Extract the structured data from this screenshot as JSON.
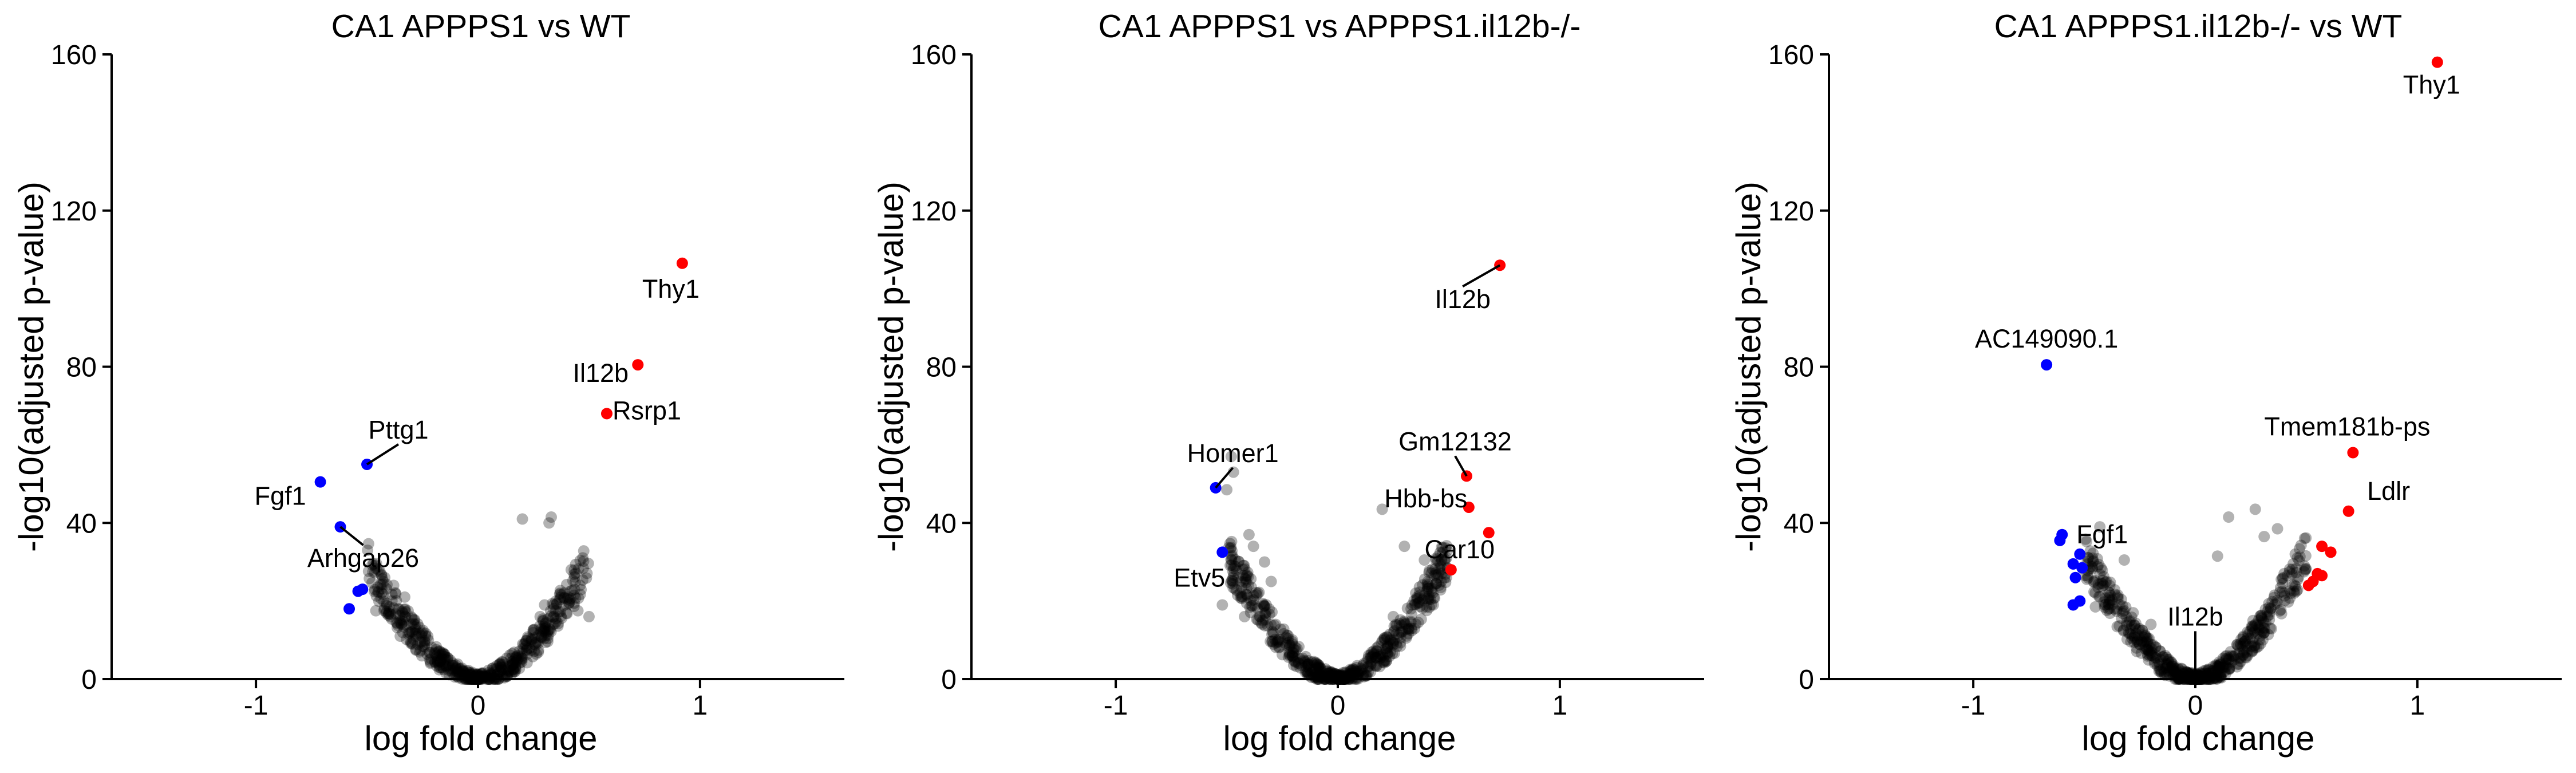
{
  "colors": {
    "background": "#ffffff",
    "neutral_point": "#000000",
    "up": "#ff0000",
    "down": "#0000ff",
    "axis": "#000000"
  },
  "chart_data": [
    {
      "type": "scatter",
      "title": "CA1 APPPS1 vs WT",
      "xlabel": "log fold change",
      "ylabel": "-log10(adjusted p-value)",
      "xlim": [
        -1.65,
        1.65
      ],
      "ylim": [
        0,
        160
      ],
      "xticks": [
        -1,
        0,
        1
      ],
      "yticks": [
        0,
        40,
        80,
        120,
        160
      ],
      "xtick_labels": [
        "-1",
        "0",
        "1"
      ],
      "ytick_labels": [
        "0",
        "40",
        "80",
        "120",
        "160"
      ],
      "grid": false,
      "highlighted": [
        {
          "gene": "Thy1",
          "x": 0.92,
          "y": 106.5,
          "dir": "up",
          "label": "Thy1"
        },
        {
          "gene": "Il12b",
          "x": 0.72,
          "y": 80.5,
          "dir": "up",
          "label": "Il12b"
        },
        {
          "gene": "Rsrp1",
          "x": 0.58,
          "y": 68,
          "dir": "up",
          "label": "Rsrp1"
        },
        {
          "gene": "Pttg1",
          "x": -0.5,
          "y": 55,
          "dir": "down",
          "label": "Pttg1"
        },
        {
          "gene": "Fgf1",
          "x": -0.71,
          "y": 50.5,
          "dir": "down",
          "label": "Fgf1"
        },
        {
          "gene": "Arhgap26",
          "x": -0.62,
          "y": 39,
          "dir": "down",
          "label": "Arhgap26"
        },
        {
          "gene": "",
          "x": -0.52,
          "y": 23,
          "dir": "down",
          "label": ""
        },
        {
          "gene": "",
          "x": -0.54,
          "y": 22.5,
          "dir": "down",
          "label": ""
        },
        {
          "gene": "",
          "x": -0.58,
          "y": 18,
          "dir": "down",
          "label": ""
        }
      ],
      "background_points": [
        [
          0.2,
          41
        ],
        [
          0.33,
          41.5
        ],
        [
          0.32,
          40
        ],
        [
          0.42,
          28
        ],
        [
          0.37,
          22
        ],
        [
          0.3,
          19
        ],
        [
          0.45,
          17.5
        ],
        [
          0.35,
          15.5
        ],
        [
          0.5,
          16
        ],
        [
          -0.45,
          28
        ],
        [
          -0.38,
          24
        ],
        [
          -0.33,
          21
        ],
        [
          -0.4,
          18.5
        ],
        [
          -0.46,
          17.5
        ],
        [
          -0.3,
          14
        ],
        [
          -0.25,
          12
        ],
        [
          -0.35,
          11
        ],
        [
          -0.42,
          26
        ],
        [
          -0.36,
          18
        ],
        [
          0.41,
          19.5
        ],
        [
          0.28,
          16
        ],
        [
          0.46,
          24
        ]
      ],
      "cloud": {
        "span": [
          -0.5,
          0.5
        ],
        "peak": 30,
        "n": 520
      }
    },
    {
      "type": "scatter",
      "title": "CA1 APPPS1 vs APPPS1.il12b-/-",
      "xlabel": "log fold change",
      "ylabel": "-log10(adjusted p-value)",
      "xlim": [
        -1.65,
        1.65
      ],
      "ylim": [
        0,
        160
      ],
      "xticks": [
        -1,
        0,
        1
      ],
      "yticks": [
        0,
        40,
        80,
        120,
        160
      ],
      "xtick_labels": [
        "-1",
        "0",
        "1"
      ],
      "ytick_labels": [
        "0",
        "40",
        "80",
        "120",
        "160"
      ],
      "grid": false,
      "highlighted": [
        {
          "gene": "Il12b",
          "x": 0.73,
          "y": 106,
          "dir": "up",
          "label": "Il12b"
        },
        {
          "gene": "Gm12132",
          "x": 0.58,
          "y": 52,
          "dir": "up",
          "label": "Gm12132"
        },
        {
          "gene": "Hbb-bs",
          "x": 0.59,
          "y": 44,
          "dir": "up",
          "label": "Hbb-bs"
        },
        {
          "gene": "",
          "x": 0.68,
          "y": 37.5,
          "dir": "up",
          "label": ""
        },
        {
          "gene": "Car10",
          "x": 0.51,
          "y": 28,
          "dir": "up",
          "label": "Car10"
        },
        {
          "gene": "Homer1",
          "x": -0.55,
          "y": 49,
          "dir": "down",
          "label": "Homer1"
        },
        {
          "gene": "Etv5",
          "x": -0.52,
          "y": 32.5,
          "dir": "down",
          "label": "Etv5"
        }
      ],
      "background_points": [
        [
          -0.48,
          57
        ],
        [
          -0.47,
          53
        ],
        [
          -0.5,
          48.5
        ],
        [
          -0.4,
          37
        ],
        [
          -0.38,
          34
        ],
        [
          -0.33,
          30
        ],
        [
          -0.45,
          26
        ],
        [
          -0.52,
          19
        ],
        [
          -0.3,
          25
        ],
        [
          -0.36,
          22
        ],
        [
          0.2,
          43.5
        ],
        [
          0.3,
          34
        ],
        [
          0.39,
          30.5
        ],
        [
          0.4,
          22.5
        ],
        [
          0.45,
          26
        ],
        [
          0.43,
          19
        ],
        [
          0.33,
          18
        ],
        [
          0.25,
          16
        ],
        [
          -0.42,
          16
        ],
        [
          -0.28,
          14
        ]
      ],
      "cloud": {
        "span": [
          -0.5,
          0.5
        ],
        "peak": 32,
        "n": 560
      }
    },
    {
      "type": "scatter",
      "title": "CA1 APPPS1.il12b-/- vs WT",
      "xlabel": "log fold change",
      "ylabel": "-log10(adjusted p-value)",
      "xlim": [
        -1.65,
        1.65
      ],
      "ylim": [
        0,
        160
      ],
      "xticks": [
        -1,
        0,
        1
      ],
      "yticks": [
        0,
        40,
        80,
        120,
        160
      ],
      "xtick_labels": [
        "-1",
        "0",
        "1"
      ],
      "ytick_labels": [
        "0",
        "40",
        "80",
        "120",
        "160"
      ],
      "grid": false,
      "highlighted": [
        {
          "gene": "Thy1",
          "x": 1.09,
          "y": 158,
          "dir": "up",
          "label": "Thy1"
        },
        {
          "gene": "Tmem181b-ps",
          "x": 0.71,
          "y": 58,
          "dir": "up",
          "label": "Tmem181b-ps"
        },
        {
          "gene": "Ldlr",
          "x": 0.69,
          "y": 43,
          "dir": "up",
          "label": "Ldlr"
        },
        {
          "gene": "",
          "x": 0.57,
          "y": 34,
          "dir": "up",
          "label": ""
        },
        {
          "gene": "",
          "x": 0.61,
          "y": 32.5,
          "dir": "up",
          "label": ""
        },
        {
          "gene": "",
          "x": 0.55,
          "y": 27,
          "dir": "up",
          "label": ""
        },
        {
          "gene": "",
          "x": 0.57,
          "y": 26.5,
          "dir": "up",
          "label": ""
        },
        {
          "gene": "",
          "x": 0.53,
          "y": 25,
          "dir": "up",
          "label": ""
        },
        {
          "gene": "",
          "x": 0.51,
          "y": 24,
          "dir": "up",
          "label": ""
        },
        {
          "gene": "AC149090.1",
          "x": -0.67,
          "y": 80.5,
          "dir": "down",
          "label": "AC149090.1"
        },
        {
          "gene": "Fgf1",
          "x": -0.6,
          "y": 37,
          "dir": "down",
          "label": "Fgf1"
        },
        {
          "gene": "",
          "x": -0.61,
          "y": 35.5,
          "dir": "down",
          "label": ""
        },
        {
          "gene": "",
          "x": -0.52,
          "y": 32,
          "dir": "down",
          "label": ""
        },
        {
          "gene": "",
          "x": -0.55,
          "y": 29.5,
          "dir": "down",
          "label": ""
        },
        {
          "gene": "",
          "x": -0.51,
          "y": 28.5,
          "dir": "down",
          "label": ""
        },
        {
          "gene": "",
          "x": -0.54,
          "y": 26,
          "dir": "down",
          "label": ""
        },
        {
          "gene": "",
          "x": -0.52,
          "y": 20,
          "dir": "down",
          "label": ""
        },
        {
          "gene": "",
          "x": -0.55,
          "y": 19,
          "dir": "down",
          "label": ""
        }
      ],
      "background_points": [
        [
          0.27,
          43.5
        ],
        [
          0.15,
          41.5
        ],
        [
          0.37,
          38.5
        ],
        [
          0.31,
          36.5
        ],
        [
          0.45,
          32
        ],
        [
          0.4,
          27
        ],
        [
          0.49,
          27.5
        ],
        [
          0.43,
          22
        ],
        [
          -0.43,
          39
        ],
        [
          -0.32,
          30.5
        ],
        [
          -0.4,
          25
        ],
        [
          -0.35,
          21
        ],
        [
          -0.45,
          18.5
        ],
        [
          -0.28,
          17
        ],
        [
          0.1,
          31.5
        ],
        [
          0.34,
          18
        ],
        [
          -0.2,
          14
        ],
        [
          0.26,
          15
        ]
      ],
      "cloud": {
        "span": [
          -0.5,
          0.5
        ],
        "peak": 32,
        "n": 560
      },
      "annotations": [
        {
          "label": "Il12b",
          "x": 0.0,
          "y": 2
        }
      ]
    }
  ]
}
